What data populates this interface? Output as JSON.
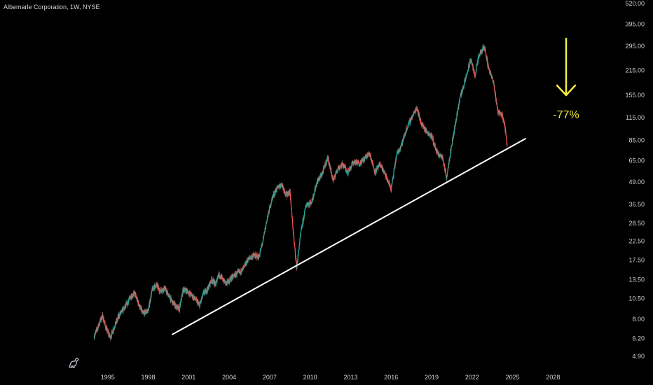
{
  "header": {
    "title": "Albemarle Corporation, 1W, NYSE"
  },
  "colors": {
    "background": "#000000",
    "up": "#26a69a",
    "down": "#ef5350",
    "trendline": "#ffffff",
    "annotation": "#f5ea3b",
    "text": "#d1d4dc"
  },
  "icons": {
    "logo": "tradingview-dino-icon",
    "arrow": "arrow-down-icon"
  },
  "chart_data": {
    "type": "line",
    "style": "candlestick",
    "interval": "1W",
    "scale": "log",
    "grid": false,
    "xlim": [
      1993.0,
      2029.6
    ],
    "ylim": [
      4.9,
      520
    ],
    "x_ticks": [
      "1995",
      "1998",
      "2001",
      "2004",
      "2007",
      "2010",
      "2013",
      "2016",
      "2019",
      "2022",
      "2025",
      "2028"
    ],
    "y_ticks": [
      "520.00",
      "395.00",
      "295.00",
      "215.00",
      "155.00",
      "115.00",
      "85.00",
      "65.00",
      "49.00",
      "36.50",
      "28.50",
      "22.50",
      "17.50",
      "13.50",
      "10.50",
      "8.00",
      "6.20",
      "4.90"
    ],
    "price_path": [
      [
        1994.0,
        6.4
      ],
      [
        1994.3,
        7.3
      ],
      [
        1994.6,
        8.4
      ],
      [
        1994.9,
        7.0
      ],
      [
        1995.2,
        6.3
      ],
      [
        1995.5,
        7.3
      ],
      [
        1995.9,
        8.6
      ],
      [
        1996.3,
        9.4
      ],
      [
        1996.7,
        10.8
      ],
      [
        1997.0,
        11.3
      ],
      [
        1997.2,
        10.2
      ],
      [
        1997.6,
        8.6
      ],
      [
        1998.0,
        9.0
      ],
      [
        1998.3,
        11.9
      ],
      [
        1998.6,
        12.6
      ],
      [
        1998.9,
        11.6
      ],
      [
        1999.2,
        12.1
      ],
      [
        1999.5,
        11.0
      ],
      [
        1999.8,
        10.0
      ],
      [
        2000.0,
        9.6
      ],
      [
        2000.3,
        9.1
      ],
      [
        2000.6,
        11.9
      ],
      [
        2000.9,
        11.6
      ],
      [
        2001.2,
        11.0
      ],
      [
        2001.5,
        10.4
      ],
      [
        2001.8,
        9.6
      ],
      [
        2002.1,
        11.3
      ],
      [
        2002.4,
        11.9
      ],
      [
        2002.7,
        13.6
      ],
      [
        2003.0,
        12.6
      ],
      [
        2003.2,
        14.6
      ],
      [
        2003.5,
        13.6
      ],
      [
        2003.8,
        12.8
      ],
      [
        2004.2,
        13.9
      ],
      [
        2004.6,
        14.7
      ],
      [
        2005.0,
        15.4
      ],
      [
        2005.4,
        17.7
      ],
      [
        2005.8,
        18.6
      ],
      [
        2006.2,
        18.2
      ],
      [
        2006.5,
        22.5
      ],
      [
        2006.8,
        30.0
      ],
      [
        2007.2,
        40.0
      ],
      [
        2007.5,
        44.7
      ],
      [
        2007.9,
        47.9
      ],
      [
        2008.2,
        41.5
      ],
      [
        2008.5,
        43.2
      ],
      [
        2008.8,
        22.5
      ],
      [
        2009.0,
        16.0
      ],
      [
        2009.3,
        25.0
      ],
      [
        2009.7,
        36.5
      ],
      [
        2010.1,
        37.5
      ],
      [
        2010.5,
        49.0
      ],
      [
        2010.9,
        55.0
      ],
      [
        2011.3,
        68.0
      ],
      [
        2011.7,
        50.0
      ],
      [
        2012.0,
        58.0
      ],
      [
        2012.4,
        62.0
      ],
      [
        2012.8,
        56.0
      ],
      [
        2013.2,
        64.0
      ],
      [
        2013.7,
        63.0
      ],
      [
        2014.1,
        68.0
      ],
      [
        2014.4,
        72.0
      ],
      [
        2014.8,
        56.0
      ],
      [
        2015.2,
        62.0
      ],
      [
        2015.6,
        53.0
      ],
      [
        2016.0,
        44.7
      ],
      [
        2016.4,
        70.0
      ],
      [
        2016.8,
        82.0
      ],
      [
        2017.2,
        102.0
      ],
      [
        2017.6,
        118.0
      ],
      [
        2017.9,
        132.0
      ],
      [
        2018.2,
        108.0
      ],
      [
        2018.6,
        96.0
      ],
      [
        2019.0,
        90.0
      ],
      [
        2019.4,
        72.0
      ],
      [
        2019.8,
        68.0
      ],
      [
        2020.1,
        52.0
      ],
      [
        2020.3,
        66.0
      ],
      [
        2020.7,
        100.0
      ],
      [
        2021.1,
        150.0
      ],
      [
        2021.5,
        190.0
      ],
      [
        2021.9,
        250.0
      ],
      [
        2022.2,
        200.0
      ],
      [
        2022.5,
        260.0
      ],
      [
        2022.9,
        295.0
      ],
      [
        2023.2,
        225.0
      ],
      [
        2023.6,
        180.0
      ],
      [
        2023.9,
        125.0
      ],
      [
        2024.2,
        120.0
      ],
      [
        2024.4,
        105.0
      ],
      [
        2024.6,
        80.0
      ]
    ],
    "trendline": {
      "x": [
        1999.8,
        2025.95
      ],
      "y": [
        6.55,
        87.0
      ]
    },
    "annotation": {
      "text": "-77%",
      "arrow": "down"
    }
  }
}
